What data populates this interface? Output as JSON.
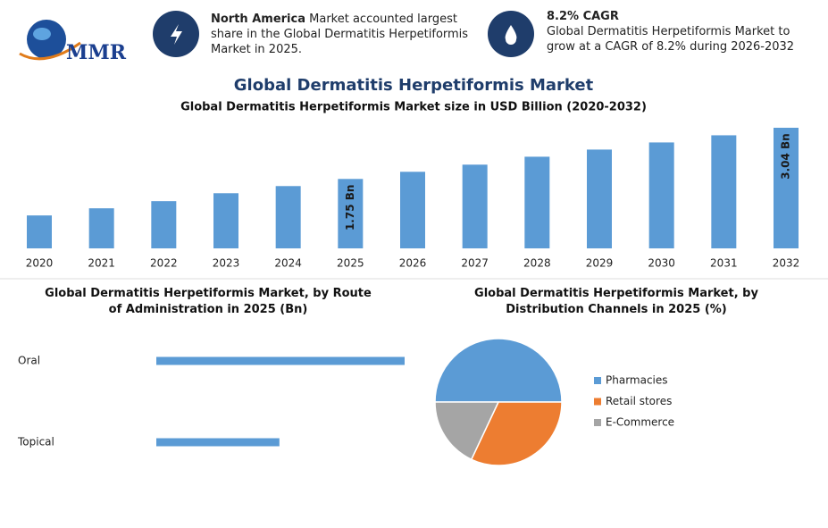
{
  "header": {
    "logo": "MMR",
    "fact1": {
      "bold": "North America",
      "text": "Market accounted largest share in the Global Dermatitis Herpetiformis Market in 2025."
    },
    "fact2": {
      "title": "8.2% CAGR",
      "text": "Global Dermatitis Herpetiformis Market to grow at a CAGR of 8.2% during 2026-2032"
    },
    "heading": "Global Dermatitis Herpetiformis Market"
  },
  "chart_data": [
    {
      "type": "bar",
      "title": "Global Dermatitis Herpetiformis Market size in USD Billion (2020-2032)",
      "categories": [
        "2020",
        "2021",
        "2022",
        "2023",
        "2024",
        "2025",
        "2026",
        "2027",
        "2028",
        "2029",
        "2030",
        "2031",
        "2032"
      ],
      "values": [
        0.83,
        1.01,
        1.19,
        1.39,
        1.57,
        1.75,
        1.93,
        2.11,
        2.31,
        2.49,
        2.67,
        2.85,
        3.04
      ],
      "value_labels": [
        null,
        null,
        null,
        null,
        null,
        "1.75 Bn",
        null,
        null,
        null,
        null,
        null,
        null,
        "3.04 Bn"
      ],
      "color": "#5b9bd5"
    },
    {
      "type": "bar",
      "horizontal": true,
      "title": "Global Dermatitis Herpetiformis Market, by Route of Administration in 2025 (Bn)",
      "categories": [
        "Oral",
        "Topical"
      ],
      "values": [
        1.17,
        0.58
      ],
      "color": "#5b9bd5"
    },
    {
      "type": "pie",
      "title": "Global Dermatitis Herpetiformis Market, by Distribution Channels in 2025 (%)",
      "categories": [
        "Pharmacies",
        "Retail stores",
        "E-Commerce"
      ],
      "values": [
        50,
        32,
        18
      ],
      "colors": [
        "#5b9bd5",
        "#ed7d31",
        "#a5a5a5"
      ],
      "legend": "right"
    }
  ]
}
